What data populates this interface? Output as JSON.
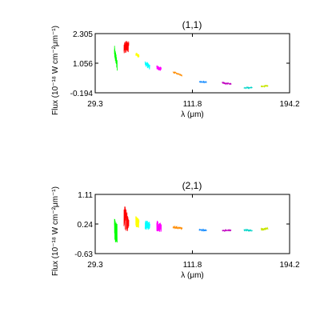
{
  "chart_data": [
    {
      "type": "scatter",
      "title": "(1,1)",
      "xlabel": "λ (μm)",
      "ylabel": "Flux (10⁻¹⁸ W cm⁻²μm⁻¹)",
      "xlim": [
        29.3,
        194.2
      ],
      "ylim": [
        -0.194,
        2.305
      ],
      "x_ticks": [
        "29.3",
        "111.8",
        "194.2"
      ],
      "y_ticks": [
        "-0.194",
        "1.056",
        "2.305"
      ],
      "grid": false,
      "legend": "none",
      "series": [
        {
          "color": "#00ff00",
          "x": [
            45.6,
            48.0
          ],
          "center": [
            1.55,
            0.95
          ],
          "spread": [
            0.55,
            0.45
          ]
        },
        {
          "color": "#ff0000",
          "x": [
            53.7,
            57.8
          ],
          "center": [
            1.75,
            1.75
          ],
          "spread": [
            0.55,
            0.45
          ]
        },
        {
          "color": "#ffff00",
          "x": [
            63.7,
            66.5
          ],
          "center": [
            1.45,
            1.35
          ],
          "spread": [
            0.15,
            0.15
          ]
        },
        {
          "color": "#00ffff",
          "x": [
            71.6,
            75.7
          ],
          "center": [
            1.05,
            0.88
          ],
          "spread": [
            0.25,
            0.22
          ]
        },
        {
          "color": "#ff00ff",
          "x": [
            81.5,
            85.4
          ],
          "center": [
            0.88,
            0.8
          ],
          "spread": [
            0.2,
            0.18
          ]
        },
        {
          "color": "#ff8c00",
          "x": [
            95.2,
            103.1
          ],
          "center": [
            0.68,
            0.54
          ],
          "spread": [
            0.06,
            0.06
          ]
        },
        {
          "color": "#1e90ff",
          "x": [
            117.5,
            123.8
          ],
          "center": [
            0.28,
            0.25
          ],
          "spread": [
            0.06,
            0.06
          ]
        },
        {
          "color": "#c000c0",
          "x": [
            137.0,
            144.6
          ],
          "center": [
            0.22,
            0.18
          ],
          "spread": [
            0.07,
            0.07
          ]
        },
        {
          "color": "#00d4c8",
          "x": [
            155.4,
            162.5
          ],
          "center": [
            0.02,
            0.02
          ],
          "spread": [
            0.05,
            0.05
          ]
        },
        {
          "color": "#c8e600",
          "x": [
            169.9,
            175.9
          ],
          "center": [
            0.07,
            0.1
          ],
          "spread": [
            0.06,
            0.06
          ]
        }
      ]
    },
    {
      "type": "scatter",
      "title": "(2,1)",
      "xlabel": "λ (μm)",
      "ylabel": "Flux (10⁻¹⁸ W cm⁻²μm⁻¹)",
      "xlim": [
        29.3,
        194.2
      ],
      "ylim": [
        -0.63,
        1.11
      ],
      "x_ticks": [
        "29.3",
        "111.8",
        "194.2"
      ],
      "y_ticks": [
        "-0.63",
        "0.24",
        "1.11"
      ],
      "grid": false,
      "legend": "none",
      "series": [
        {
          "color": "#00ff00",
          "x": [
            45.6,
            48.0
          ],
          "center": [
            0.05,
            -0.05
          ],
          "spread": [
            0.75,
            0.6
          ]
        },
        {
          "color": "#ff0000",
          "x": [
            53.7,
            57.8
          ],
          "center": [
            0.45,
            0.3
          ],
          "spread": [
            0.75,
            0.6
          ]
        },
        {
          "color": "#ffff00",
          "x": [
            63.7,
            66.5
          ],
          "center": [
            0.32,
            0.28
          ],
          "spread": [
            0.35,
            0.3
          ]
        },
        {
          "color": "#00ffff",
          "x": [
            71.6,
            75.7
          ],
          "center": [
            0.22,
            0.18
          ],
          "spread": [
            0.3,
            0.25
          ]
        },
        {
          "color": "#ff00ff",
          "x": [
            81.5,
            85.4
          ],
          "center": [
            0.2,
            0.12
          ],
          "spread": [
            0.35,
            0.25
          ]
        },
        {
          "color": "#ff8c00",
          "x": [
            95.2,
            103.1
          ],
          "center": [
            0.14,
            0.12
          ],
          "spread": [
            0.07,
            0.07
          ]
        },
        {
          "color": "#1e90ff",
          "x": [
            117.5,
            123.8
          ],
          "center": [
            0.07,
            0.05
          ],
          "spread": [
            0.05,
            0.05
          ]
        },
        {
          "color": "#c000c0",
          "x": [
            137.0,
            144.6
          ],
          "center": [
            0.05,
            0.05
          ],
          "spread": [
            0.04,
            0.04
          ]
        },
        {
          "color": "#00d4c8",
          "x": [
            155.4,
            162.5
          ],
          "center": [
            0.06,
            0.05
          ],
          "spread": [
            0.05,
            0.05
          ]
        },
        {
          "color": "#c8e600",
          "x": [
            169.9,
            175.9
          ],
          "center": [
            0.08,
            0.11
          ],
          "spread": [
            0.07,
            0.07
          ]
        }
      ]
    }
  ]
}
